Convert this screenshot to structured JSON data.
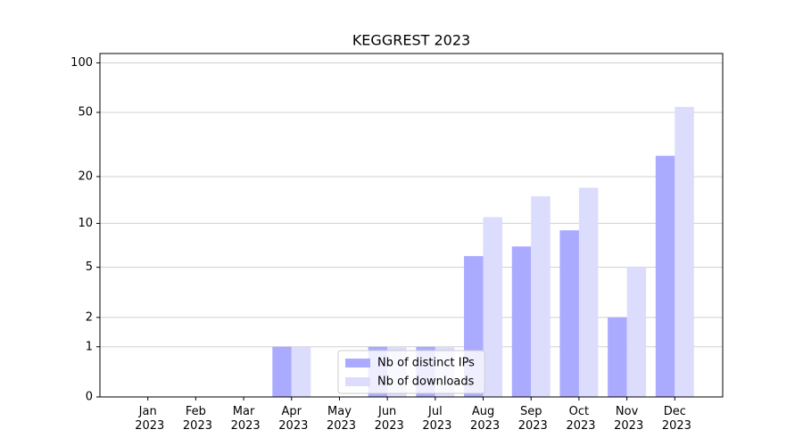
{
  "chart_data": {
    "type": "bar",
    "title": "KEGGREST 2023",
    "categories": [
      "Jan 2023",
      "Feb 2023",
      "Mar 2023",
      "Apr 2023",
      "May 2023",
      "Jun 2023",
      "Jul 2023",
      "Aug 2023",
      "Sep 2023",
      "Oct 2023",
      "Nov 2023",
      "Dec 2023"
    ],
    "series": [
      {
        "name": "Nb of distinct IPs",
        "color": "#aaaaff",
        "values": [
          0,
          0,
          0,
          1,
          0,
          1,
          1,
          6,
          7,
          9,
          2,
          27
        ]
      },
      {
        "name": "Nb of downloads",
        "color": "#dcdcfc",
        "values": [
          0,
          0,
          0,
          1,
          0,
          1,
          1,
          11,
          15,
          17,
          5,
          54
        ]
      }
    ],
    "yscale": "log1p",
    "ylim": [
      0,
      114
    ],
    "yticks": [
      0,
      1,
      2,
      5,
      10,
      20,
      50,
      100
    ],
    "grid": true,
    "legend": "lower center"
  }
}
